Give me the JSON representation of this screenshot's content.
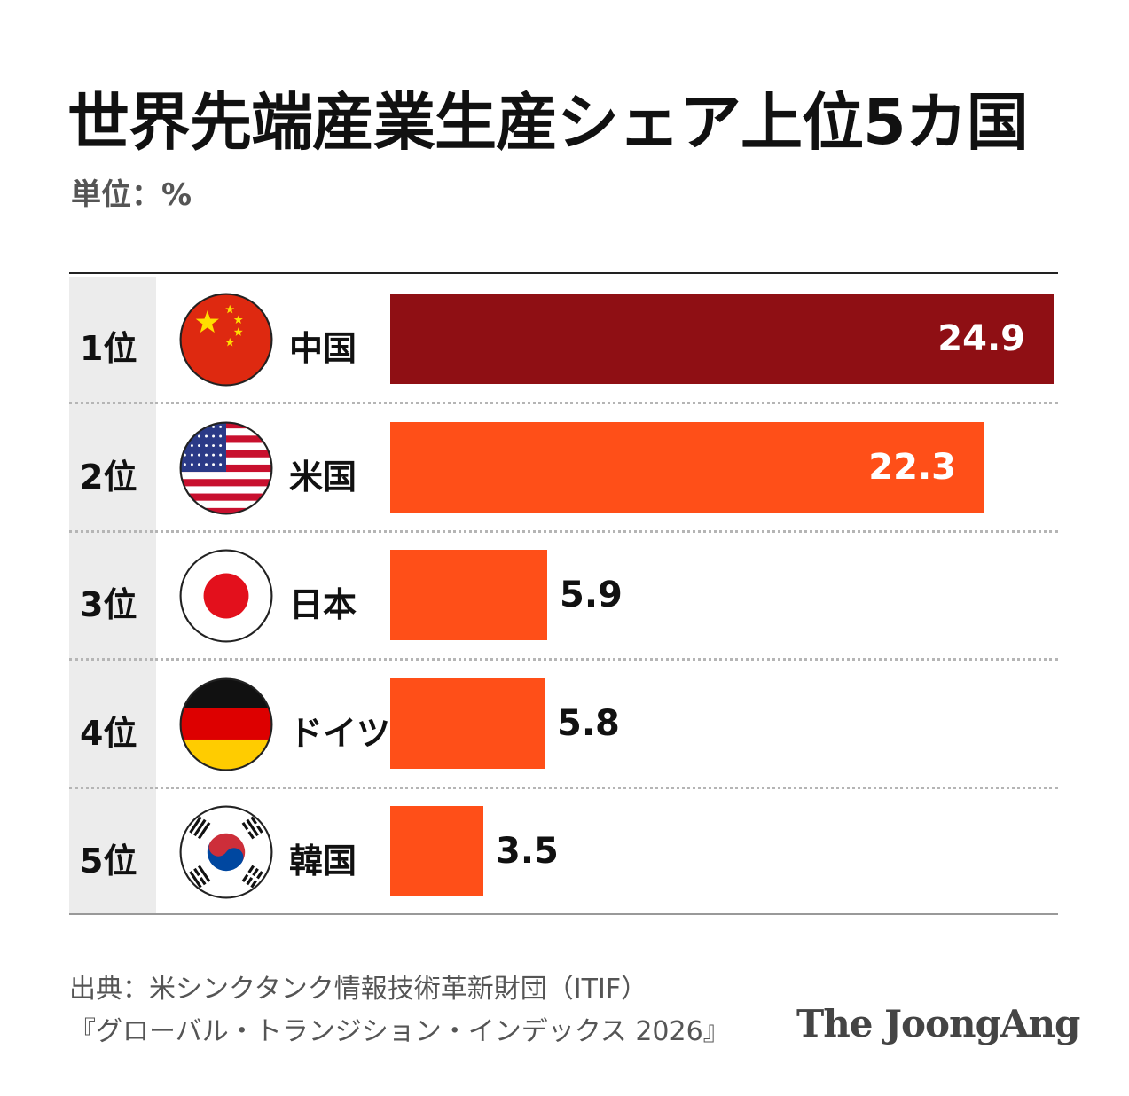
{
  "title": "世界先端産業生産シェア上位5カ国",
  "unit": "単位：%",
  "chart_data": {
    "type": "bar",
    "orientation": "horizontal",
    "categories": [
      "中国",
      "米国",
      "日本",
      "ドイツ",
      "韓国"
    ],
    "ranks": [
      "1位",
      "2位",
      "3位",
      "4位",
      "5位"
    ],
    "values": [
      24.9,
      22.3,
      5.9,
      5.8,
      3.5
    ],
    "value_labels": [
      "24.9",
      "22.3",
      "5.9",
      "5.8",
      "3.5"
    ],
    "xlim": [
      0,
      24.9
    ],
    "colors": [
      "#8f0f14",
      "#ff4f18",
      "#ff4f18",
      "#ff4f18",
      "#ff4f18"
    ],
    "flags": [
      "china-flag-icon",
      "usa-flag-icon",
      "japan-flag-icon",
      "germany-flag-icon",
      "korea-flag-icon"
    ],
    "grid": false
  },
  "source_line1": "出典：米シンクタンク情報技術革新財団（ITIF）",
  "source_line2": "『グローバル・トランジション・インデックス 2026』",
  "logo": "The JoongAng"
}
